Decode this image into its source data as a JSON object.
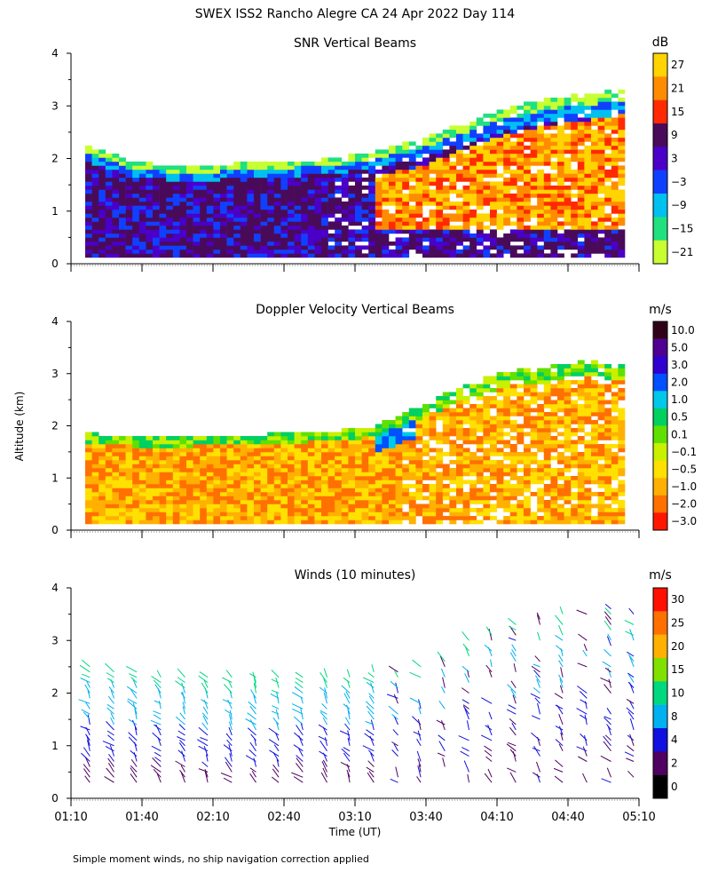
{
  "page": {
    "title": "SWEX ISS2 Rancho Alegre CA  24 Apr 2022 Day 114",
    "y_axis_label": "Altitude (km)",
    "x_axis_label": "Time (UT)",
    "footnote": "Simple moment winds, no ship navigation correction applied"
  },
  "chart_data": [
    {
      "type": "heatmap",
      "title": "SNR Vertical Beams",
      "colorbar": {
        "unit": "dB",
        "tick_labels": [
          "27",
          "21",
          "15",
          "9",
          "3",
          "−3",
          "−9",
          "−15",
          "−21"
        ],
        "colors": [
          "#ffd400",
          "#ff8c00",
          "#ff2a00",
          "#4a0a5a",
          "#4a00c8",
          "#1040ff",
          "#00c0f0",
          "#20e080",
          "#c8ff30"
        ]
      },
      "xlim_hours": [
        1.1667,
        5.1667
      ],
      "x_ticks": [
        "01:10",
        "01:40",
        "02:10",
        "02:40",
        "03:10",
        "03:40",
        "04:10",
        "04:40",
        "05:10"
      ],
      "ylim_km": [
        0,
        4
      ],
      "y_ticks": [
        "0",
        "1",
        "2",
        "3",
        "4"
      ],
      "echo_top_km": [
        [
          1.2,
          2.3
        ],
        [
          1.6,
          1.9
        ],
        [
          2.0,
          1.8
        ],
        [
          2.5,
          1.9
        ],
        [
          3.0,
          1.95
        ],
        [
          3.3,
          2.1
        ],
        [
          3.6,
          2.3
        ],
        [
          3.9,
          2.6
        ],
        [
          4.2,
          2.9
        ],
        [
          4.5,
          3.1
        ],
        [
          4.8,
          3.2
        ],
        [
          5.1,
          3.3
        ]
      ]
    },
    {
      "type": "heatmap",
      "title": "Doppler Velocity Vertical Beams",
      "colorbar": {
        "unit": "m/s",
        "tick_labels": [
          "10.0",
          "5.0",
          "3.0",
          "2.0",
          "1.0",
          "0.5",
          "0.1",
          "−0.1",
          "−0.5",
          "−1.0",
          "−2.0",
          "−3.0"
        ],
        "colors": [
          "#300018",
          "#500090",
          "#3000d0",
          "#0050ff",
          "#00c8e8",
          "#00d060",
          "#60e000",
          "#c8f000",
          "#ffe000",
          "#ffb000",
          "#ff7000",
          "#ff1800"
        ]
      },
      "xlim_hours": [
        1.1667,
        5.1667
      ],
      "x_ticks": [
        "01:10",
        "01:40",
        "02:10",
        "02:40",
        "03:10",
        "03:40",
        "04:10",
        "04:40",
        "05:10"
      ],
      "ylim_km": [
        0,
        4
      ],
      "y_ticks": [
        "0",
        "1",
        "2",
        "3",
        "4"
      ],
      "echo_top_km": [
        [
          1.2,
          1.85
        ],
        [
          1.6,
          1.75
        ],
        [
          2.0,
          1.75
        ],
        [
          2.5,
          1.8
        ],
        [
          3.0,
          1.85
        ],
        [
          3.3,
          1.95
        ],
        [
          3.6,
          2.3
        ],
        [
          3.9,
          2.7
        ],
        [
          4.2,
          3.0
        ],
        [
          4.5,
          3.1
        ],
        [
          4.8,
          3.2
        ],
        [
          5.1,
          3.15
        ]
      ]
    },
    {
      "type": "scatter",
      "title": "Winds (10 minutes)",
      "colorbar": {
        "unit": "m/s",
        "tick_labels": [
          "30",
          "25",
          "20",
          "15",
          "10",
          "8",
          "4",
          "2",
          "0"
        ],
        "colors": [
          "#ff1000",
          "#ff7000",
          "#ffb000",
          "#80e000",
          "#00d880",
          "#00b0f0",
          "#1010e0",
          "#500060",
          "#000000"
        ]
      },
      "xlim_hours": [
        1.1667,
        5.1667
      ],
      "x_ticks": [
        "01:10",
        "01:40",
        "02:10",
        "02:40",
        "03:10",
        "03:40",
        "04:10",
        "04:40",
        "05:10"
      ],
      "ylim_km": [
        0,
        4
      ],
      "y_ticks": [
        "0",
        "1",
        "2",
        "3",
        "4"
      ],
      "profile_times_hours": [
        1.3,
        1.47,
        1.63,
        1.8,
        1.97,
        2.13,
        2.3,
        2.47,
        2.63,
        2.8,
        2.97,
        3.13,
        3.3,
        3.47,
        3.63,
        3.8,
        3.97,
        4.13,
        4.3,
        4.47,
        4.63,
        4.8,
        4.97,
        5.13
      ],
      "profile_tops_km": [
        2.6,
        2.5,
        2.5,
        2.4,
        2.4,
        2.35,
        2.35,
        2.35,
        2.35,
        2.4,
        2.4,
        2.4,
        2.5,
        2.6,
        2.7,
        2.9,
        3.1,
        3.3,
        3.4,
        3.5,
        3.6,
        3.7,
        3.7,
        3.6
      ]
    }
  ]
}
